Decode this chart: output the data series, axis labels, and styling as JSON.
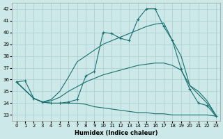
{
  "xlabel": "Humidex (Indice chaleur)",
  "bg_color": "#cce8e8",
  "line_color": "#1a7070",
  "grid_color": "#aacece",
  "xlim": [
    -0.5,
    23.5
  ],
  "ylim": [
    32.5,
    42.5
  ],
  "yticks": [
    33,
    34,
    35,
    36,
    37,
    38,
    39,
    40,
    41,
    42
  ],
  "xticks": [
    0,
    1,
    2,
    3,
    4,
    5,
    6,
    7,
    8,
    9,
    10,
    11,
    12,
    13,
    14,
    15,
    16,
    17,
    18,
    19,
    20,
    21,
    22,
    23
  ],
  "curves": [
    {
      "x": [
        0,
        1,
        2,
        3,
        4,
        5,
        6,
        7,
        8,
        9,
        10,
        11,
        12,
        13,
        14,
        15,
        16,
        17,
        18,
        19,
        20,
        21,
        22,
        23
      ],
      "y": [
        35.8,
        35.9,
        34.4,
        34.1,
        34.0,
        34.0,
        34.1,
        34.3,
        36.3,
        36.7,
        40.0,
        39.9,
        39.5,
        39.3,
        41.1,
        42.0,
        42.0,
        40.5,
        39.3,
        36.9,
        35.2,
        34.0,
        33.8,
        32.9
      ],
      "marker": "+"
    },
    {
      "x": [
        0,
        2,
        3,
        4,
        5,
        6,
        7,
        8,
        9,
        10,
        11,
        12,
        13,
        14,
        15,
        16,
        17,
        18,
        19,
        20,
        22,
        23
      ],
      "y": [
        35.8,
        34.4,
        34.1,
        34.3,
        35.0,
        36.2,
        37.5,
        38.0,
        38.5,
        39.0,
        39.3,
        39.6,
        39.9,
        40.2,
        40.5,
        40.7,
        40.8,
        39.3,
        38.0,
        35.5,
        34.0,
        33.0
      ],
      "marker": null
    },
    {
      "x": [
        0,
        2,
        3,
        4,
        5,
        6,
        7,
        8,
        9,
        10,
        11,
        12,
        13,
        14,
        15,
        16,
        17,
        18,
        19,
        20,
        21,
        22,
        23
      ],
      "y": [
        35.8,
        34.4,
        34.1,
        34.2,
        34.5,
        35.0,
        35.4,
        35.8,
        36.1,
        36.4,
        36.6,
        36.8,
        37.0,
        37.2,
        37.3,
        37.4,
        37.4,
        37.2,
        36.8,
        35.5,
        35.0,
        34.2,
        33.0
      ],
      "marker": null
    },
    {
      "x": [
        0,
        2,
        3,
        4,
        5,
        6,
        7,
        8,
        9,
        10,
        11,
        12,
        13,
        14,
        15,
        16,
        17,
        18,
        19,
        20,
        21,
        22,
        23
      ],
      "y": [
        35.8,
        34.4,
        34.1,
        34.0,
        34.0,
        34.0,
        34.0,
        33.9,
        33.7,
        33.6,
        33.5,
        33.4,
        33.3,
        33.2,
        33.2,
        33.1,
        33.1,
        33.0,
        33.0,
        33.0,
        33.0,
        33.0,
        32.9
      ],
      "marker": null
    }
  ]
}
